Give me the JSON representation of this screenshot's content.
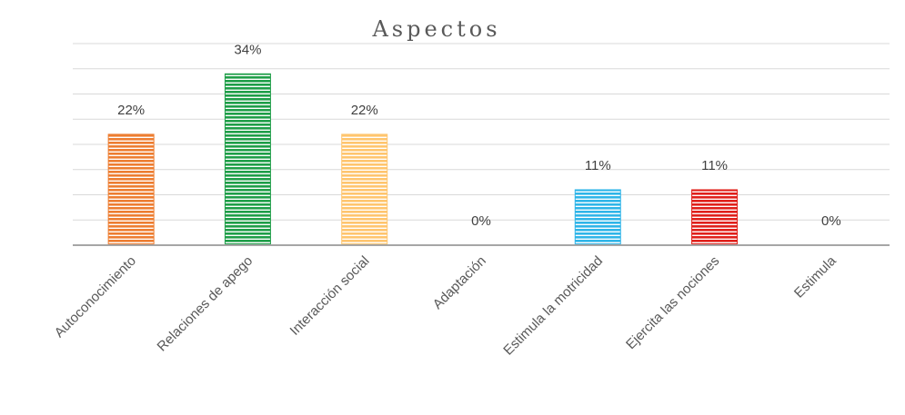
{
  "chart_data": {
    "type": "bar",
    "title": "Aspectos",
    "categories": [
      "Autoconocimiento",
      "Relaciones de apego",
      "Interacción social",
      "Adaptación",
      "Estimula la motricidad",
      "Ejercita las nociones",
      "Estimula"
    ],
    "values": [
      22,
      34,
      22,
      0,
      11,
      11,
      0
    ],
    "value_labels": [
      "22%",
      "34%",
      "22%",
      "0%",
      "11%",
      "11%",
      "0%"
    ],
    "unit": "%",
    "ylim": [
      0,
      40
    ],
    "grid": true,
    "legend": "none",
    "bar_colors": [
      "#ED7D31",
      "#1E9E48",
      "#FFC56E",
      "#A5A5A5",
      "#2FB5E8",
      "#E0201B",
      "#8E8E8E"
    ]
  }
}
